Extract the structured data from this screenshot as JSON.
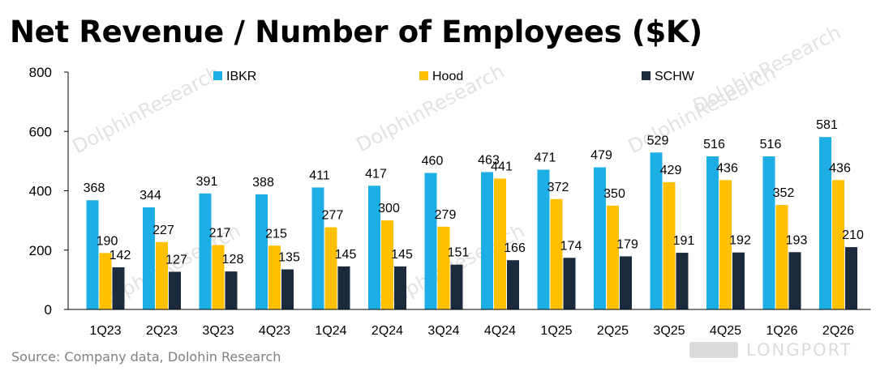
{
  "title": "Net Revenue / Number of Employees ($K)",
  "source": "Source:  Company data,  Dolohin Research",
  "watermark": "DolphinResearch",
  "brand": "LONGPORT",
  "chart_data": {
    "type": "bar",
    "title": "Net Revenue / Number of Employees ($K)",
    "xlabel": "",
    "ylabel": "",
    "ylim": [
      0,
      800
    ],
    "yticks": [
      0,
      200,
      400,
      600,
      800
    ],
    "grid": false,
    "legend_position": "top",
    "categories": [
      "1Q23",
      "2Q23",
      "3Q23",
      "4Q23",
      "1Q24",
      "2Q24",
      "3Q24",
      "4Q24",
      "1Q25",
      "2Q25",
      "3Q25",
      "4Q25",
      "1Q26",
      "2Q26"
    ],
    "series": [
      {
        "name": "IBKR",
        "color": "#1CAEE4",
        "values": [
          368,
          344,
          391,
          388,
          411,
          417,
          460,
          463,
          471,
          479,
          529,
          516,
          516,
          581
        ]
      },
      {
        "name": "Hood",
        "color": "#FFC000",
        "values": [
          190,
          227,
          217,
          215,
          277,
          300,
          279,
          441,
          372,
          350,
          429,
          436,
          352,
          436
        ]
      },
      {
        "name": "SCHW",
        "color": "#1B2A3D",
        "values": [
          142,
          127,
          128,
          135,
          145,
          145,
          151,
          166,
          174,
          179,
          191,
          192,
          193,
          210
        ]
      }
    ]
  }
}
